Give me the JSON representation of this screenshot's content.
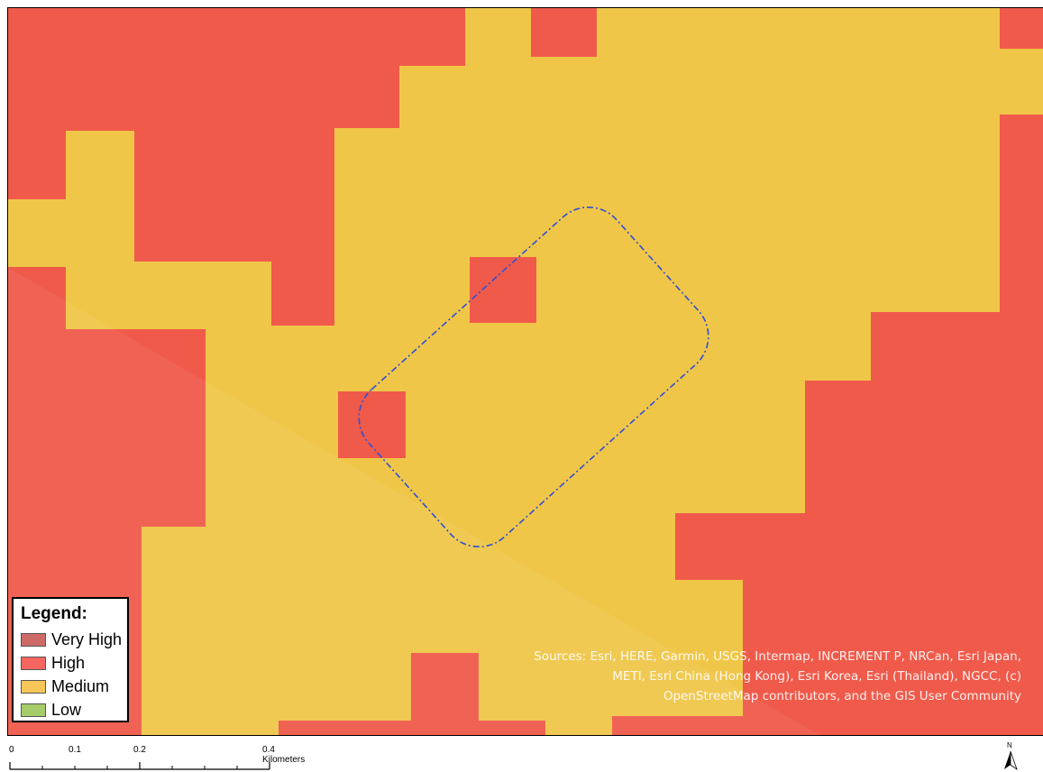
{
  "legend": {
    "title": "Legend:",
    "items": [
      {
        "label": "Very High",
        "color": "#cd6a67"
      },
      {
        "label": "High",
        "color": "#f4665f"
      },
      {
        "label": "Medium",
        "color": "#f7c658"
      },
      {
        "label": "Low",
        "color": "#a6cc6a"
      }
    ]
  },
  "colors": {
    "high": "#f05a4a",
    "medium": "#f0c648",
    "boundary": "#2b4fd8"
  },
  "attribution": "Sources: Esri, HERE, Garmin, USGS, Intermap, INCREMENT P, NRCan, Esri Japan, METI, Esri China (Hong Kong), Esri Korea, Esri (Thailand), NGCC, (c) OpenStreetMap contributors, and the GIS User Community",
  "scale": {
    "labels": [
      "0",
      "0.1",
      "0.2",
      "0.4 Kilometers"
    ]
  },
  "north_arrow": {
    "label": "N",
    "icon": "north-arrow-icon"
  }
}
